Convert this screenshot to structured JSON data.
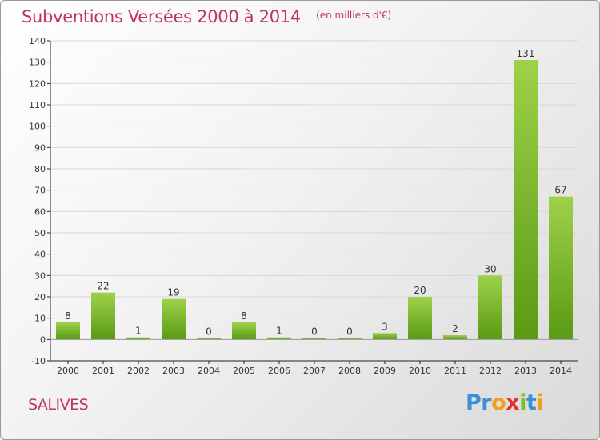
{
  "chart_data": {
    "type": "bar",
    "title": "Subventions Versées 2000 à 2014",
    "subtitle": "(en milliers d'€)",
    "categories": [
      "2000",
      "2001",
      "2002",
      "2003",
      "2004",
      "2005",
      "2006",
      "2007",
      "2008",
      "2009",
      "2010",
      "2011",
      "2012",
      "2013",
      "2014"
    ],
    "values": [
      8,
      22,
      1,
      19,
      0,
      8,
      1,
      0,
      0,
      3,
      20,
      2,
      30,
      131,
      67
    ],
    "ylim": [
      -10,
      140
    ],
    "yticks": [
      -10,
      0,
      10,
      20,
      30,
      40,
      50,
      60,
      70,
      80,
      90,
      100,
      110,
      120,
      130,
      140
    ],
    "grid": true,
    "bar_color": "#7fbf2a"
  },
  "footer": {
    "commune": "SALIVES",
    "logo_letters": [
      "P",
      "r",
      "o",
      "x",
      "i",
      "t",
      "i"
    ],
    "logo_colors": [
      "#3a8fd6",
      "#3a8fd6",
      "#f0a020",
      "#e0342a",
      "#7fbf2a",
      "#3a8fd6",
      "#f0a020"
    ]
  },
  "colors": {
    "title": "#c0306a",
    "grid": "#d8d8d8",
    "axis": "#222222"
  }
}
